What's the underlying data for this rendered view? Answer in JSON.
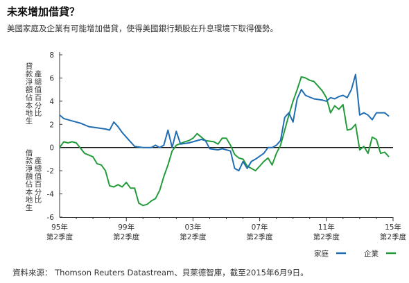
{
  "title": "未來增加借貸？",
  "subtitle": "美國家庭及企業有可能增加借貸，使得美國銀行類股在升息環境下取得優勢。",
  "source": "資料來源： Thomson Reuters Datastream、貝萊德智庫，截至2015年6月9日。",
  "colors": {
    "household": "#1f6db3",
    "corporate": "#239b3b",
    "axis": "#333333"
  },
  "chart_data": {
    "type": "line",
    "ylabel_upper": "貸款淨額佔本地生產總值百分比",
    "ylabel_lower": "借款淨額佔本地生產總值百分比",
    "ylim": [
      -6,
      8
    ],
    "yticks": [
      "8",
      "6",
      "4",
      "2",
      "0",
      "-2",
      "-4",
      "-6"
    ],
    "xticks": [
      {
        "year": "95年",
        "quarter": "第2季度"
      },
      {
        "year": "99年",
        "quarter": "第2季度"
      },
      {
        "year": "03年",
        "quarter": "第2季度"
      },
      {
        "year": "07年",
        "quarter": "第2季度"
      },
      {
        "year": "11年",
        "quarter": "第2季度"
      },
      {
        "year": "15年",
        "quarter": "第2季度"
      }
    ],
    "xlim": [
      1995.25,
      2015.25
    ],
    "legend": {
      "position": "bottom-right"
    },
    "series": [
      {
        "name": "家庭",
        "values": [
          [
            1995.25,
            2.8
          ],
          [
            1995.5,
            2.5
          ],
          [
            1996.0,
            2.3
          ],
          [
            1996.5,
            2.1
          ],
          [
            1997.0,
            1.8
          ],
          [
            1997.5,
            1.7
          ],
          [
            1998.0,
            1.6
          ],
          [
            1998.25,
            1.5
          ],
          [
            1998.5,
            2.2
          ],
          [
            1998.75,
            1.8
          ],
          [
            1999.0,
            1.3
          ],
          [
            1999.5,
            0.5
          ],
          [
            1999.75,
            0.1
          ],
          [
            2000.25,
            0.0
          ],
          [
            2000.75,
            0.0
          ],
          [
            2001.0,
            0.2
          ],
          [
            2001.25,
            0.0
          ],
          [
            2001.5,
            0.2
          ],
          [
            2001.75,
            1.5
          ],
          [
            2002.0,
            0.0
          ],
          [
            2002.25,
            1.4
          ],
          [
            2002.5,
            0.3
          ],
          [
            2003.0,
            0.4
          ],
          [
            2003.25,
            0.5
          ],
          [
            2003.75,
            0.7
          ],
          [
            2004.0,
            0.6
          ],
          [
            2004.25,
            -0.1
          ],
          [
            2004.75,
            -0.2
          ],
          [
            2005.0,
            -0.1
          ],
          [
            2005.5,
            -0.3
          ],
          [
            2005.75,
            -1.8
          ],
          [
            2006.0,
            -2.0
          ],
          [
            2006.25,
            -1.2
          ],
          [
            2006.5,
            -1.8
          ],
          [
            2006.75,
            -1.2
          ],
          [
            2007.0,
            -1.0
          ],
          [
            2007.5,
            -0.5
          ],
          [
            2007.75,
            0.0
          ],
          [
            2008.0,
            0.0
          ],
          [
            2008.25,
            0.2
          ],
          [
            2008.5,
            0.6
          ],
          [
            2008.75,
            2.6
          ],
          [
            2009.0,
            3.0
          ],
          [
            2009.25,
            2.2
          ],
          [
            2009.5,
            4.2
          ],
          [
            2009.75,
            5.0
          ],
          [
            2010.0,
            4.5
          ],
          [
            2010.5,
            4.2
          ],
          [
            2011.0,
            4.1
          ],
          [
            2011.25,
            4.0
          ],
          [
            2011.5,
            4.3
          ],
          [
            2011.75,
            4.2
          ],
          [
            2012.0,
            4.4
          ],
          [
            2012.25,
            4.5
          ],
          [
            2012.5,
            4.3
          ],
          [
            2012.75,
            5.0
          ],
          [
            2013.0,
            6.3
          ],
          [
            2013.25,
            2.8
          ],
          [
            2013.5,
            3.0
          ],
          [
            2013.75,
            2.8
          ],
          [
            2014.0,
            2.4
          ],
          [
            2014.25,
            3.0
          ],
          [
            2014.75,
            3.0
          ],
          [
            2015.0,
            2.7
          ]
        ]
      },
      {
        "name": "企業",
        "values": [
          [
            1995.25,
            0.0
          ],
          [
            1995.5,
            0.5
          ],
          [
            1995.75,
            0.4
          ],
          [
            1996.0,
            0.5
          ],
          [
            1996.25,
            0.4
          ],
          [
            1996.75,
            -0.5
          ],
          [
            1997.25,
            -0.8
          ],
          [
            1997.5,
            -1.4
          ],
          [
            1997.75,
            -1.5
          ],
          [
            1998.0,
            -2.0
          ],
          [
            1998.25,
            -3.3
          ],
          [
            1998.5,
            -3.4
          ],
          [
            1998.75,
            -3.2
          ],
          [
            1999.0,
            -3.4
          ],
          [
            1999.25,
            -3.0
          ],
          [
            1999.5,
            -3.5
          ],
          [
            1999.75,
            -3.5
          ],
          [
            2000.0,
            -4.8
          ],
          [
            2000.25,
            -5.0
          ],
          [
            2000.5,
            -4.9
          ],
          [
            2000.75,
            -4.6
          ],
          [
            2001.0,
            -4.4
          ],
          [
            2001.25,
            -3.7
          ],
          [
            2001.5,
            -2.5
          ],
          [
            2001.75,
            -1.5
          ],
          [
            2002.0,
            -0.3
          ],
          [
            2002.25,
            0.2
          ],
          [
            2002.75,
            0.5
          ],
          [
            2003.0,
            0.6
          ],
          [
            2003.25,
            0.8
          ],
          [
            2003.5,
            1.2
          ],
          [
            2004.0,
            0.6
          ],
          [
            2004.5,
            0.5
          ],
          [
            2004.75,
            0.3
          ],
          [
            2005.0,
            0.8
          ],
          [
            2005.25,
            0.8
          ],
          [
            2005.5,
            0.2
          ],
          [
            2005.75,
            -0.6
          ],
          [
            2006.0,
            -0.9
          ],
          [
            2006.25,
            -1.0
          ],
          [
            2006.5,
            -1.6
          ],
          [
            2006.75,
            -1.8
          ],
          [
            2007.0,
            -2.0
          ],
          [
            2007.25,
            -1.6
          ],
          [
            2007.5,
            -1.2
          ],
          [
            2007.75,
            -0.9
          ],
          [
            2008.0,
            -1.5
          ],
          [
            2008.25,
            -0.5
          ],
          [
            2008.5,
            0.2
          ],
          [
            2008.75,
            1.5
          ],
          [
            2009.0,
            2.8
          ],
          [
            2009.25,
            4.0
          ],
          [
            2009.5,
            5.0
          ],
          [
            2009.75,
            6.1
          ],
          [
            2010.0,
            6.0
          ],
          [
            2010.25,
            5.8
          ],
          [
            2010.5,
            5.7
          ],
          [
            2010.75,
            5.3
          ],
          [
            2011.0,
            4.9
          ],
          [
            2011.25,
            4.3
          ],
          [
            2011.5,
            3.0
          ],
          [
            2011.75,
            3.6
          ],
          [
            2012.0,
            3.3
          ],
          [
            2012.25,
            3.7
          ],
          [
            2012.5,
            1.5
          ],
          [
            2012.75,
            1.6
          ],
          [
            2013.0,
            2.0
          ],
          [
            2013.25,
            -0.2
          ],
          [
            2013.5,
            0.1
          ],
          [
            2013.75,
            -0.5
          ],
          [
            2014.0,
            0.9
          ],
          [
            2014.25,
            0.7
          ],
          [
            2014.5,
            -0.5
          ],
          [
            2014.75,
            -0.4
          ],
          [
            2015.0,
            -0.8
          ]
        ]
      }
    ]
  }
}
